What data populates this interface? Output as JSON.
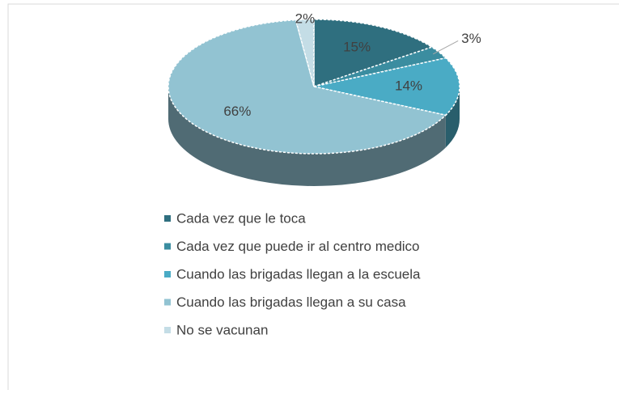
{
  "chart_data": {
    "type": "pie",
    "categories": [
      "Cada vez que le toca",
      "Cada vez que puede ir al centro medico",
      "Cuando las brigadas llegan a la escuela",
      "Cuando las brigadas llegan a su casa",
      "No se vacunan"
    ],
    "values": [
      15,
      3,
      14,
      66,
      2
    ],
    "value_labels": [
      "15%",
      "3%",
      "14%",
      "66%",
      "2%"
    ],
    "colors": [
      "#2f6f7f",
      "#3b8da0",
      "#4aabc5",
      "#92c3d2",
      "#c4dde6"
    ]
  }
}
